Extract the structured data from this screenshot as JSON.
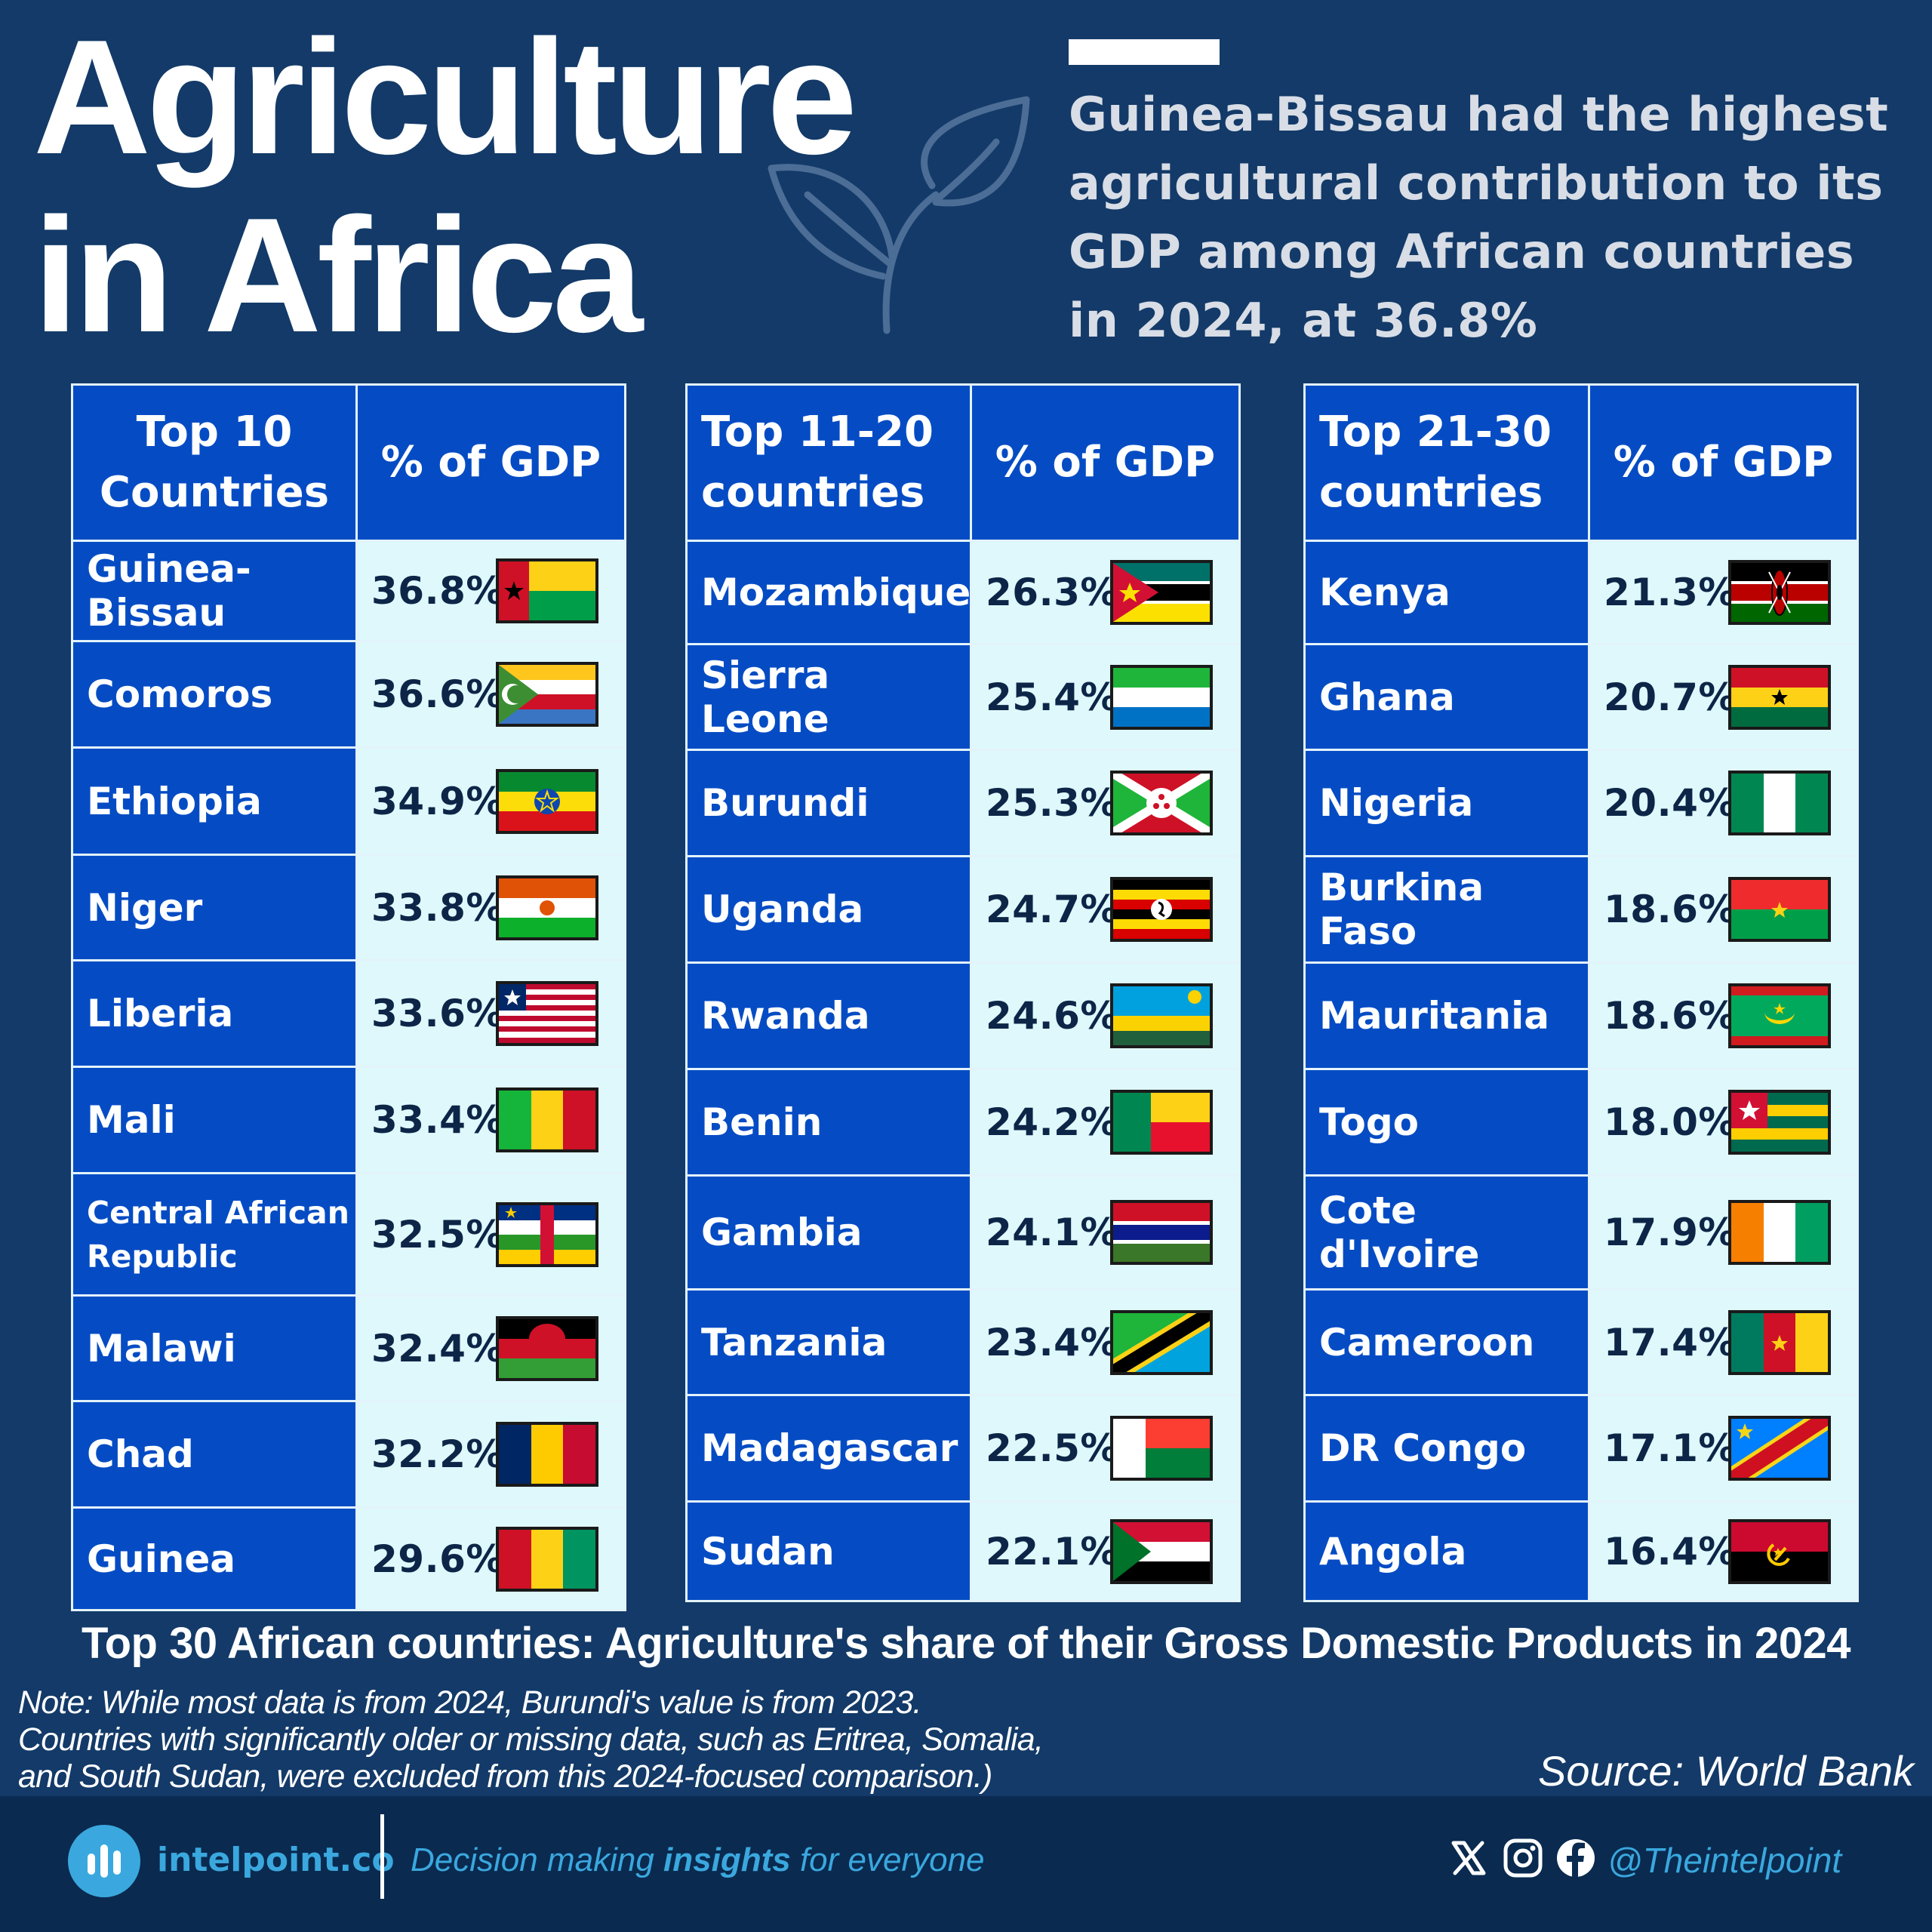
{
  "header": {
    "title_lines": [
      "Agriculture",
      "in Africa"
    ],
    "subtitle": "Guinea-Bissau had the highest agricultural contribution to its GDP among African countries in 2024, at 36.8%",
    "leaf_icon": "leaf-icon"
  },
  "chart_data": {
    "type": "table",
    "title": "Top 30 African countries: Agriculture's share of their Gross Domestic Products in 2024",
    "unit": "%",
    "tables": [
      {
        "header": [
          "Top 10\nCountries",
          "% of GDP"
        ],
        "rows": [
          {
            "country": "Guinea-Bissau",
            "value": 36.8,
            "label": "36.8%",
            "flag": "guinea-bissau-flag-icon"
          },
          {
            "country": "Comoros",
            "value": 36.6,
            "label": "36.6%",
            "flag": "comoros-flag-icon"
          },
          {
            "country": "Ethiopia",
            "value": 34.9,
            "label": "34.9%",
            "flag": "ethiopia-flag-icon"
          },
          {
            "country": "Niger",
            "value": 33.8,
            "label": "33.8%",
            "flag": "niger-flag-icon"
          },
          {
            "country": "Liberia",
            "value": 33.6,
            "label": "33.6%",
            "flag": "liberia-flag-icon"
          },
          {
            "country": "Mali",
            "value": 33.4,
            "label": "33.4%",
            "flag": "mali-flag-icon"
          },
          {
            "country": "Central African\nRepublic",
            "value": 32.5,
            "label": "32.5%",
            "flag": "central-african-republic-flag-icon"
          },
          {
            "country": "Malawi",
            "value": 32.4,
            "label": "32.4%",
            "flag": "malawi-flag-icon"
          },
          {
            "country": "Chad",
            "value": 32.2,
            "label": "32.2%",
            "flag": "chad-flag-icon"
          },
          {
            "country": "Guinea",
            "value": 29.6,
            "label": "29.6%",
            "flag": "guinea-flag-icon"
          }
        ]
      },
      {
        "header": [
          "Top 11-20\ncountries",
          "% of GDP"
        ],
        "rows": [
          {
            "country": "Mozambique",
            "value": 26.3,
            "label": "26.3%",
            "flag": "mozambique-flag-icon"
          },
          {
            "country": "Sierra Leone",
            "value": 25.4,
            "label": "25.4%",
            "flag": "sierra-leone-flag-icon"
          },
          {
            "country": "Burundi",
            "value": 25.3,
            "label": "25.3%",
            "flag": "burundi-flag-icon"
          },
          {
            "country": "Uganda",
            "value": 24.7,
            "label": "24.7%",
            "flag": "uganda-flag-icon"
          },
          {
            "country": "Rwanda",
            "value": 24.6,
            "label": "24.6%",
            "flag": "rwanda-flag-icon"
          },
          {
            "country": "Benin",
            "value": 24.2,
            "label": "24.2%",
            "flag": "benin-flag-icon"
          },
          {
            "country": "Gambia",
            "value": 24.1,
            "label": "24.1%",
            "flag": "gambia-flag-icon"
          },
          {
            "country": "Tanzania",
            "value": 23.4,
            "label": "23.4%",
            "flag": "tanzania-flag-icon"
          },
          {
            "country": "Madagascar",
            "value": 22.5,
            "label": "22.5%",
            "flag": "madagascar-flag-icon"
          },
          {
            "country": "Sudan",
            "value": 22.1,
            "label": "22.1%",
            "flag": "sudan-flag-icon"
          }
        ]
      },
      {
        "header": [
          "Top 21-30\ncountries",
          "% of GDP"
        ],
        "rows": [
          {
            "country": "Kenya",
            "value": 21.3,
            "label": "21.3%",
            "flag": "kenya-flag-icon"
          },
          {
            "country": "Ghana",
            "value": 20.7,
            "label": "20.7%",
            "flag": "ghana-flag-icon"
          },
          {
            "country": "Nigeria",
            "value": 20.4,
            "label": "20.4%",
            "flag": "nigeria-flag-icon"
          },
          {
            "country": "Burkina Faso",
            "value": 18.6,
            "label": "18.6%",
            "flag": "burkina-faso-flag-icon"
          },
          {
            "country": "Mauritania",
            "value": 18.6,
            "label": "18.6%",
            "flag": "mauritania-flag-icon"
          },
          {
            "country": "Togo",
            "value": 18.0,
            "label": "18.0%",
            "flag": "togo-flag-icon"
          },
          {
            "country": "Cote d'Ivoire",
            "value": 17.9,
            "label": "17.9%",
            "flag": "cote-divoire-flag-icon"
          },
          {
            "country": "Cameroon",
            "value": 17.4,
            "label": "17.4%",
            "flag": "cameroon-flag-icon"
          },
          {
            "country": "DR Congo",
            "value": 17.1,
            "label": "17.1%",
            "flag": "dr-congo-flag-icon"
          },
          {
            "country": "Angola",
            "value": 16.4,
            "label": "16.4%",
            "flag": "angola-flag-icon"
          }
        ]
      }
    ]
  },
  "note_lines": [
    "Note: While most data is from 2024, Burundi's value is from 2023.",
    "Countries with significantly older or missing data, such as Eritrea, Somalia,",
    "and South Sudan, were excluded from this 2024-focused comparison.)"
  ],
  "source": "Source: World Bank",
  "footer": {
    "brand": "intelpoint.co",
    "tagline_pre": "Decision making ",
    "tagline_bold": "insights",
    "tagline_post": " for everyone",
    "handle": "@Theintelpoint",
    "social_icons": [
      "x-icon",
      "instagram-icon",
      "facebook-icon"
    ]
  },
  "colors": {
    "background": "#133a68",
    "header_cell": "#054cc4",
    "value_cell": "#dff8fb",
    "value_text": "#0d2547",
    "brand_accent": "#3aa8de"
  }
}
